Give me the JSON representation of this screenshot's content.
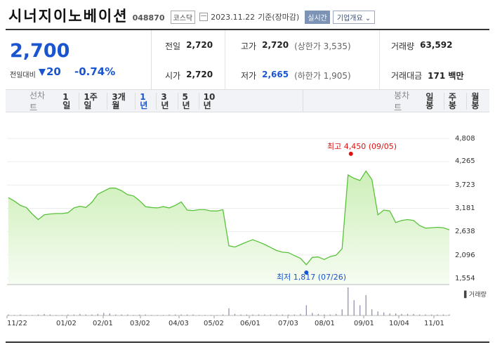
{
  "header": {
    "name": "시너지이노베이션",
    "code": "048870",
    "market": "코스닥",
    "date": "2023.11.22",
    "basis": "기준(장마감)",
    "realtime_btn": "실시간",
    "company_btn": "기업개요"
  },
  "price": {
    "current": "2,700",
    "prev_label": "전일대비",
    "change": "20",
    "percent": "-0.74%"
  },
  "stats": {
    "prev_close": {
      "k": "전일",
      "v": "2,720"
    },
    "high": {
      "k": "고가",
      "v": "2,720",
      "sub": "(상한가 3,535)"
    },
    "volume": {
      "k": "거래량",
      "v": "63,592"
    },
    "open": {
      "k": "시가",
      "v": "2,720"
    },
    "low": {
      "k": "저가",
      "v": "2,665",
      "sub": "(하한가 1,905)"
    },
    "amount": {
      "k": "거래대금",
      "v": "171 백만"
    }
  },
  "tabs": {
    "line_title": "선차트",
    "line": [
      "1일",
      "1주일",
      "3개월",
      "1년",
      "3년",
      "5년",
      "10년"
    ],
    "line_active": "1년",
    "candle_title": "봉차트",
    "candle": [
      "일봉",
      "주봉",
      "월봉"
    ]
  },
  "chart": {
    "high_label": "최고 4,450 (09/05)",
    "low_label": "최저 1,817 (07/26)",
    "y_ticks": [
      "4,808",
      "4,265",
      "3,723",
      "3,181",
      "2,638",
      "2,096",
      "1,554"
    ],
    "x_ticks": [
      "11/22",
      "01/02",
      "02/01",
      "03/02",
      "04/03",
      "05/02",
      "06/01",
      "07/03",
      "08/01",
      "09/01",
      "10/04",
      "11/01"
    ],
    "volume_label": "거래량",
    "colors": {
      "line": "#58c23a",
      "fill_top": "#cdefb8",
      "fill_bottom": "#f6fcf2",
      "high": "#e01010",
      "low": "#1a55d0"
    }
  },
  "chart_data": {
    "type": "area",
    "ylim": [
      1554,
      4808
    ],
    "high": {
      "value": 4450,
      "date": "09/05"
    },
    "low": {
      "value": 1817,
      "date": "07/26"
    },
    "series": [
      {
        "values": [
          3430,
          3350,
          3250,
          3200,
          3050,
          2920,
          3030,
          3050,
          3060,
          3060,
          3080,
          3190,
          3230,
          3200,
          3320,
          3510,
          3580,
          3650,
          3650,
          3590,
          3500,
          3470,
          3360,
          3220,
          3200,
          3190,
          3220,
          3190,
          3250,
          3330,
          3140,
          3130,
          3150,
          3150,
          3120,
          3120,
          3150,
          2310,
          2280,
          2340,
          2400,
          2450,
          2400,
          2340,
          2270,
          2200,
          2160,
          2150,
          2080,
          2020,
          1870,
          2040,
          2050,
          1990,
          2060,
          2090,
          2240,
          3960,
          3880,
          3830,
          4050,
          3850,
          3030,
          3140,
          3120,
          2850,
          2900,
          2920,
          2900,
          2780,
          2720,
          2730,
          2740,
          2730,
          2680
        ]
      },
      {
        "name": "거래량",
        "values": [
          2,
          1,
          2,
          1,
          1,
          2,
          3,
          2,
          1,
          1,
          2,
          2,
          3,
          2,
          2,
          3,
          5,
          4,
          2,
          2,
          2,
          1,
          2,
          2,
          1,
          1,
          1,
          2,
          2,
          2,
          2,
          2,
          1,
          1,
          1,
          1,
          2,
          14,
          3,
          2,
          2,
          2,
          2,
          2,
          2,
          2,
          2,
          2,
          2,
          3,
          20,
          5,
          3,
          2,
          2,
          3,
          12,
          55,
          30,
          20,
          40,
          12,
          8,
          6,
          4,
          4,
          3,
          3,
          3,
          2,
          2,
          2,
          2,
          2,
          2
        ]
      }
    ]
  }
}
